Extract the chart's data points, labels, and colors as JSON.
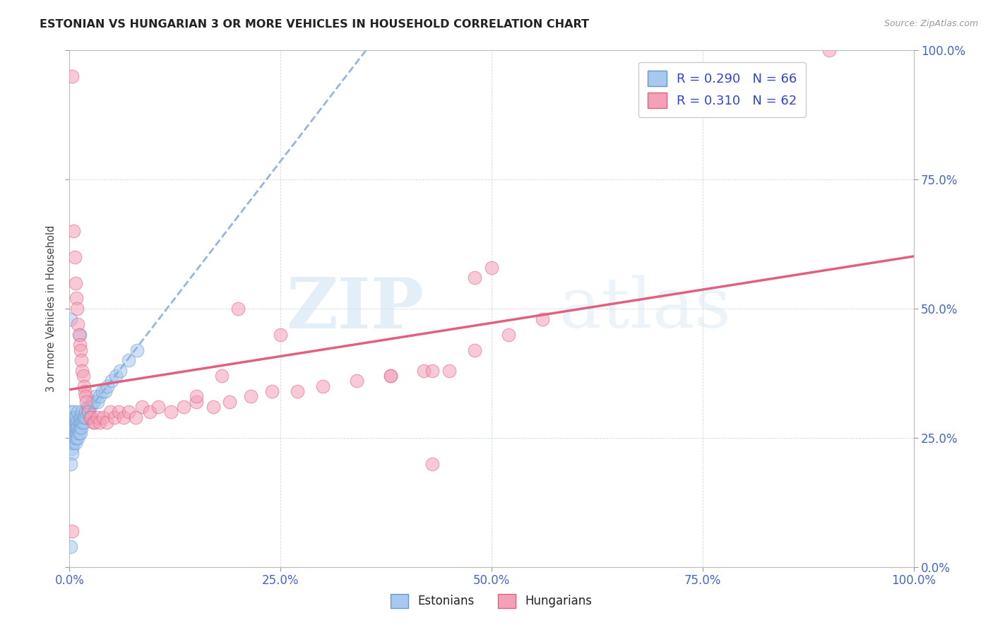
{
  "title": "ESTONIAN VS HUNGARIAN 3 OR MORE VEHICLES IN HOUSEHOLD CORRELATION CHART",
  "source": "Source: ZipAtlas.com",
  "ylabel": "3 or more Vehicles in Household",
  "xlim": [
    0,
    1
  ],
  "ylim": [
    0,
    1
  ],
  "xticks": [
    0,
    0.25,
    0.5,
    0.75,
    1.0
  ],
  "yticks": [
    0,
    0.25,
    0.5,
    0.75,
    1.0
  ],
  "xtick_labels": [
    "0.0%",
    "25.0%",
    "50.0%",
    "75.0%",
    "100.0%"
  ],
  "ytick_labels": [
    "0.0%",
    "25.0%",
    "50.0%",
    "75.0%",
    "100.0%"
  ],
  "watermark_zip": "ZIP",
  "watermark_atlas": "atlas",
  "estonian_color_fill": "#a8c8f0",
  "estonian_color_edge": "#6699cc",
  "hungarian_color_fill": "#f4a0b8",
  "hungarian_color_edge": "#e06080",
  "estonian_trend_color": "#8ab0d8",
  "hungarian_trend_color": "#e06080",
  "background_color": "#ffffff",
  "tick_color": "#4466cc",
  "title_color": "#222222",
  "source_color": "#999999",
  "legend_label_color": "#3344cc",
  "legend_R_est": "R = 0.290",
  "legend_N_est": "N = 66",
  "legend_R_hun": "R = 0.310",
  "legend_N_hun": "N = 62",
  "legend_est_label": "Estonians",
  "legend_hun_label": "Hungarians",
  "estonian_x": [
    0.001,
    0.002,
    0.002,
    0.002,
    0.003,
    0.003,
    0.003,
    0.003,
    0.003,
    0.004,
    0.004,
    0.004,
    0.005,
    0.005,
    0.005,
    0.005,
    0.006,
    0.006,
    0.006,
    0.007,
    0.007,
    0.007,
    0.008,
    0.008,
    0.008,
    0.009,
    0.009,
    0.01,
    0.01,
    0.01,
    0.011,
    0.011,
    0.012,
    0.012,
    0.013,
    0.013,
    0.014,
    0.014,
    0.015,
    0.015,
    0.016,
    0.017,
    0.018,
    0.019,
    0.02,
    0.021,
    0.022,
    0.023,
    0.025,
    0.027,
    0.029,
    0.031,
    0.033,
    0.036,
    0.039,
    0.042,
    0.045,
    0.05,
    0.055,
    0.06,
    0.07,
    0.08,
    0.001,
    0.001,
    0.001,
    0.012
  ],
  "estonian_y": [
    0.28,
    0.3,
    0.26,
    0.25,
    0.27,
    0.24,
    0.26,
    0.23,
    0.22,
    0.29,
    0.25,
    0.27,
    0.26,
    0.28,
    0.24,
    0.3,
    0.27,
    0.25,
    0.29,
    0.26,
    0.28,
    0.24,
    0.27,
    0.29,
    0.25,
    0.28,
    0.26,
    0.27,
    0.3,
    0.25,
    0.28,
    0.26,
    0.27,
    0.29,
    0.28,
    0.26,
    0.27,
    0.29,
    0.28,
    0.3,
    0.29,
    0.28,
    0.29,
    0.3,
    0.29,
    0.31,
    0.3,
    0.31,
    0.31,
    0.32,
    0.32,
    0.33,
    0.32,
    0.33,
    0.34,
    0.34,
    0.35,
    0.36,
    0.37,
    0.38,
    0.4,
    0.42,
    0.48,
    0.2,
    0.04,
    0.45
  ],
  "hungarian_x": [
    0.003,
    0.005,
    0.006,
    0.007,
    0.008,
    0.009,
    0.01,
    0.011,
    0.012,
    0.013,
    0.014,
    0.015,
    0.016,
    0.017,
    0.018,
    0.019,
    0.02,
    0.022,
    0.024,
    0.026,
    0.028,
    0.03,
    0.033,
    0.036,
    0.04,
    0.044,
    0.048,
    0.053,
    0.058,
    0.064,
    0.07,
    0.078,
    0.086,
    0.095,
    0.105,
    0.12,
    0.135,
    0.15,
    0.17,
    0.19,
    0.215,
    0.24,
    0.27,
    0.3,
    0.34,
    0.38,
    0.42,
    0.45,
    0.48,
    0.43,
    0.52,
    0.56,
    0.003,
    0.9,
    0.38,
    0.2,
    0.18,
    0.15,
    0.5,
    0.25,
    0.48,
    0.43
  ],
  "hungarian_y": [
    0.95,
    0.65,
    0.6,
    0.55,
    0.52,
    0.5,
    0.47,
    0.45,
    0.43,
    0.42,
    0.4,
    0.38,
    0.37,
    0.35,
    0.34,
    0.33,
    0.32,
    0.3,
    0.29,
    0.29,
    0.28,
    0.28,
    0.29,
    0.28,
    0.29,
    0.28,
    0.3,
    0.29,
    0.3,
    0.29,
    0.3,
    0.29,
    0.31,
    0.3,
    0.31,
    0.3,
    0.31,
    0.32,
    0.31,
    0.32,
    0.33,
    0.34,
    0.34,
    0.35,
    0.36,
    0.37,
    0.38,
    0.38,
    0.42,
    0.2,
    0.45,
    0.48,
    0.07,
    1.0,
    0.37,
    0.5,
    0.37,
    0.33,
    0.58,
    0.45,
    0.56,
    0.38
  ],
  "hun_trend_x0": 0.0,
  "hun_trend_y0": 0.25,
  "hun_trend_x1": 1.0,
  "hun_trend_y1": 0.65,
  "est_trend_x0": 0.0,
  "est_trend_y0": 0.26,
  "est_trend_x1": 1.0,
  "est_trend_y1": 0.6
}
